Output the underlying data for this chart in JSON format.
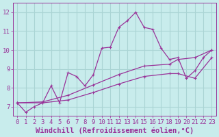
{
  "xlabel": "Windchill (Refroidissement éolien,°C)",
  "xlim": [
    -0.5,
    23.5
  ],
  "ylim": [
    6.5,
    12.5
  ],
  "yticks": [
    7,
    8,
    9,
    10,
    11,
    12
  ],
  "xticks": [
    0,
    1,
    2,
    3,
    4,
    5,
    6,
    7,
    8,
    9,
    10,
    11,
    12,
    13,
    14,
    15,
    16,
    17,
    18,
    19,
    20,
    21,
    22,
    23
  ],
  "bg_color": "#c8ecec",
  "grid_color": "#b0dada",
  "line_color": "#993399",
  "line1_x": [
    0,
    1,
    2,
    3,
    4,
    5,
    6,
    7,
    8,
    9,
    10,
    11,
    12,
    13,
    14,
    15,
    16,
    17,
    18,
    19,
    20,
    21,
    22,
    23
  ],
  "line1_y": [
    7.2,
    6.7,
    7.0,
    7.2,
    8.1,
    7.2,
    8.8,
    8.6,
    8.1,
    8.7,
    10.1,
    10.15,
    11.2,
    11.55,
    12.0,
    11.2,
    11.1,
    10.1,
    9.5,
    9.6,
    8.5,
    8.9,
    9.6,
    10.0
  ],
  "line2_x": [
    0,
    23
  ],
  "line2_y": [
    7.2,
    10.0
  ],
  "line3_x": [
    0,
    23
  ],
  "line3_y": [
    7.2,
    9.6
  ],
  "smooth2_x": [
    0,
    3,
    6,
    9,
    12,
    15,
    18,
    19,
    21,
    23
  ],
  "smooth2_y": [
    7.2,
    7.25,
    7.6,
    8.15,
    8.7,
    9.15,
    9.25,
    9.5,
    9.6,
    10.0
  ],
  "smooth3_x": [
    0,
    3,
    6,
    9,
    12,
    15,
    18,
    19,
    21,
    23
  ],
  "smooth3_y": [
    7.2,
    7.2,
    7.35,
    7.75,
    8.2,
    8.6,
    8.75,
    8.75,
    8.5,
    9.6
  ],
  "font_color": "#993399",
  "tick_fontsize": 6.5,
  "xlabel_fontsize": 7.5
}
